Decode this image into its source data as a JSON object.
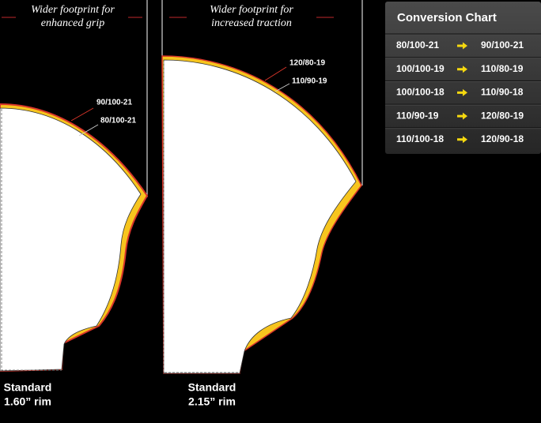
{
  "panels": [
    {
      "caption": [
        "Wider footprint for",
        "enhanced grip"
      ],
      "wider_label": "90/100-21",
      "standard_label": "80/100-21",
      "rim": [
        "Standard",
        "1.60” rim"
      ]
    },
    {
      "caption": [
        "Wider footprint for",
        "increased traction"
      ],
      "wider_label": "120/80-19",
      "standard_label": "110/90-19",
      "rim": [
        "Standard",
        "2.15” rim"
      ]
    }
  ],
  "conversion_chart": {
    "title": "Conversion Chart",
    "rows": [
      [
        "80/100-21",
        "90/100-21"
      ],
      [
        "100/100-19",
        "110/80-19"
      ],
      [
        "100/100-18",
        "110/90-18"
      ],
      [
        "110/90-19",
        "120/80-19"
      ],
      [
        "110/100-18",
        "120/90-18"
      ]
    ]
  }
}
